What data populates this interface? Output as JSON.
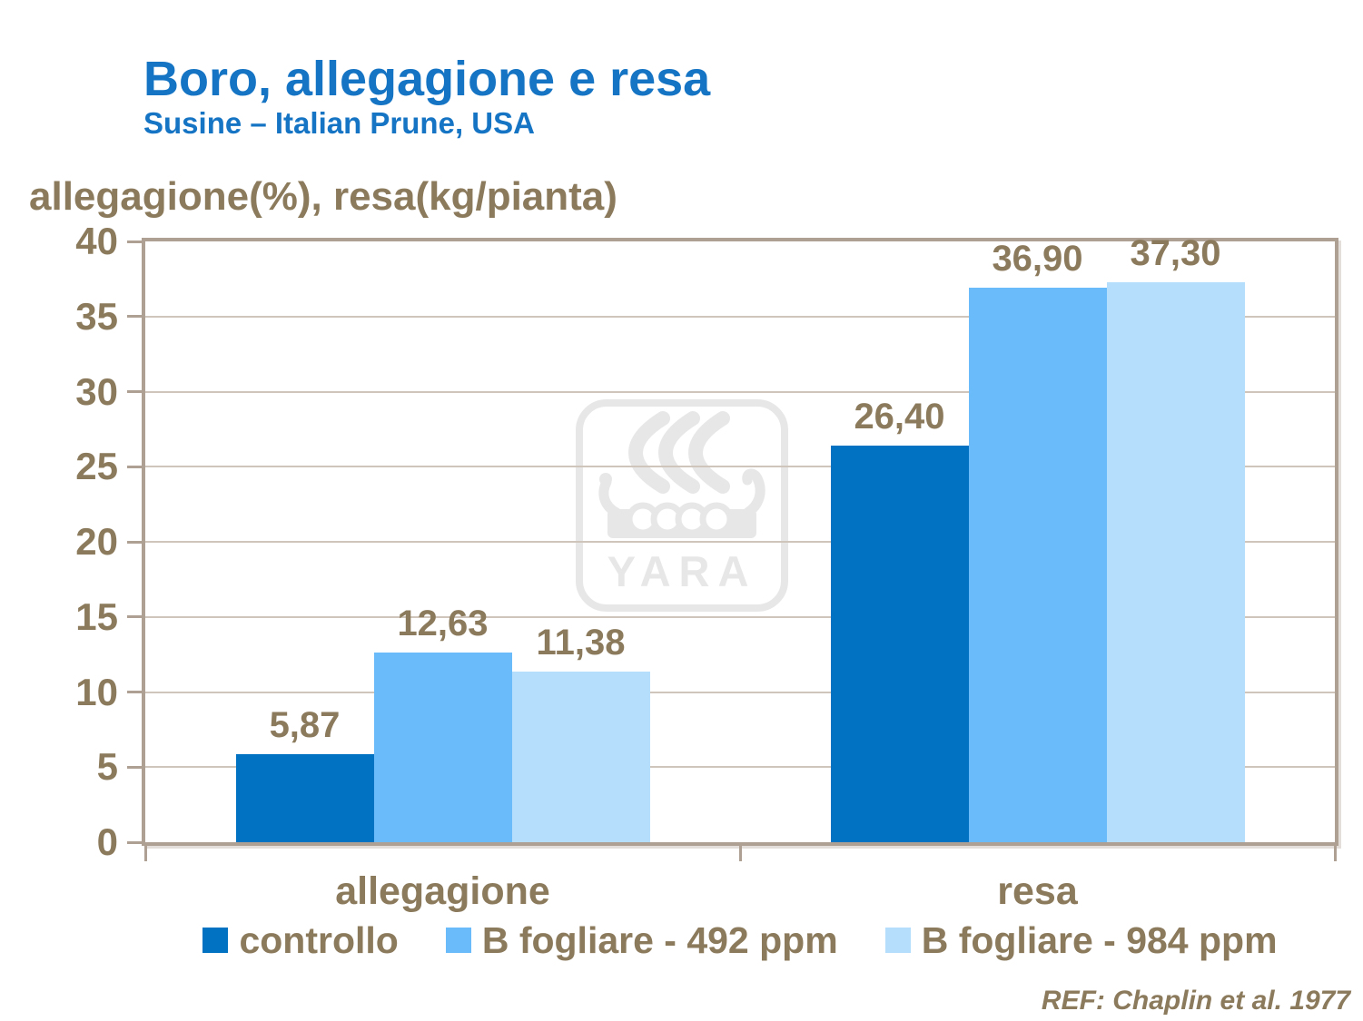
{
  "page": {
    "title": "Boro, allegagione e resa",
    "subtitle": "Susine – Italian Prune, USA",
    "axis_unit_label": "allegagione(%), resa(kg/pianta)",
    "reference": "REF: Chaplin et al. 1977"
  },
  "watermark": {
    "brand": "YARA"
  },
  "colors": {
    "title_blue": "#1574C4",
    "text_brown": "#8B7A5C",
    "frame": "#AEA092",
    "gridline": "#CFC5BA",
    "watermark_gray": "#E7E7E7",
    "series1": "#0072C1",
    "series2": "#69BBFA",
    "series3": "#B5DDFC"
  },
  "chart_data": {
    "type": "bar",
    "title": "Boro, allegagione e resa",
    "subtitle": "Susine – Italian Prune, USA",
    "ylabel": "allegagione(%), resa(kg/pianta)",
    "xlabel": "",
    "categories": [
      "allegagione",
      "resa"
    ],
    "series": [
      {
        "name": "controllo",
        "color": "#0072C1",
        "values": [
          5.87,
          26.4
        ],
        "labels": [
          "5,87",
          "26,40"
        ]
      },
      {
        "name": "B fogliare - 492 ppm",
        "color": "#69BBFA",
        "values": [
          12.63,
          36.9
        ],
        "labels": [
          "12,63",
          "36,90"
        ]
      },
      {
        "name": "B fogliare - 984 ppm",
        "color": "#B5DDFC",
        "values": [
          11.38,
          37.3
        ],
        "labels": [
          "11,38",
          "37,30"
        ]
      }
    ],
    "ylim": [
      0,
      40
    ],
    "yticks": [
      0,
      5,
      10,
      15,
      20,
      25,
      30,
      35,
      40
    ],
    "grid": true,
    "legend_position": "bottom",
    "decimal_separator": ",",
    "annotation": "REF: Chaplin et al. 1977"
  }
}
